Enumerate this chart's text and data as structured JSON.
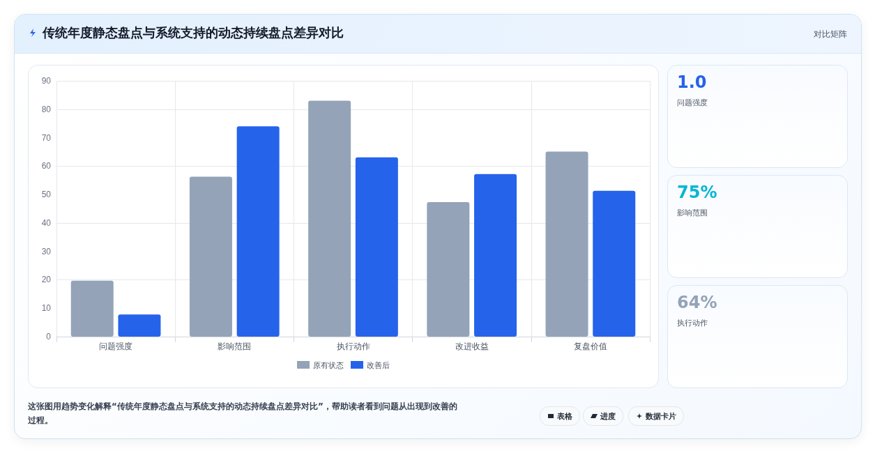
{
  "chart_data": [
    {
      "type": "bar",
      "title": "传统年度静态盘点与系统支持的动态持续盘点差异对比",
      "categories": [
        "问题强度",
        "影响范围",
        "执行动作",
        "改进收益",
        "复盘价值"
      ],
      "series": [
        {
          "name": "原有状态",
          "color": "#94a3b8",
          "values": [
            19.7,
            56.3,
            83.0,
            47.3,
            65.1
          ]
        },
        {
          "name": "改善后",
          "color": "#2563eb",
          "values": [
            7.8,
            74.0,
            63.1,
            57.2,
            51.3
          ]
        }
      ],
      "ylim": [
        0,
        90
      ],
      "yticks": [
        0,
        10,
        20,
        30,
        40,
        50,
        60,
        70,
        80,
        90
      ],
      "grid": true,
      "legend": "bottom",
      "annotations": [
        "对比矩阵",
        "这张图用趋势变化解释“传统年度静态盘点与系统支持的动态持续盘点差异对比”，帮助读者看到问题从出现到改善的过程。",
        "表格",
        "进度",
        "数据卡片"
      ]
    },
    {
      "type": "other",
      "annotations": [
        "1.0",
        "问题强度",
        "75%",
        "影响范围",
        "64%",
        "执行动作"
      ]
    }
  ]
}
